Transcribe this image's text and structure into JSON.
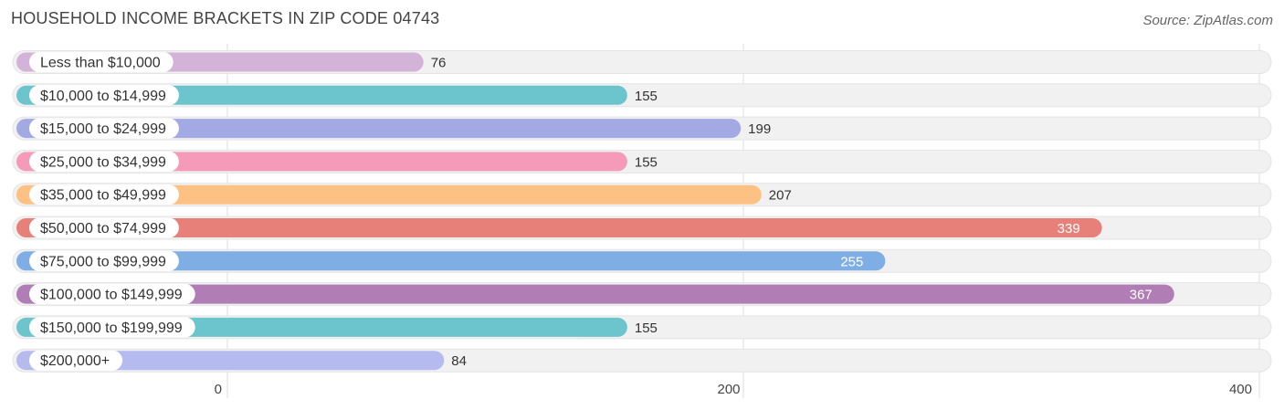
{
  "header": {
    "title": "HOUSEHOLD INCOME BRACKETS IN ZIP CODE 04743",
    "source": "Source: ZipAtlas.com"
  },
  "chart_data": {
    "type": "bar",
    "orientation": "horizontal",
    "title": "HOUSEHOLD INCOME BRACKETS IN ZIP CODE 04743",
    "categories": [
      "Less than $10,000",
      "$10,000 to $14,999",
      "$15,000 to $24,999",
      "$25,000 to $34,999",
      "$35,000 to $49,999",
      "$50,000 to $74,999",
      "$75,000 to $99,999",
      "$100,000 to $149,999",
      "$150,000 to $199,999",
      "$200,000+"
    ],
    "values": [
      76,
      155,
      199,
      155,
      207,
      339,
      255,
      367,
      155,
      84
    ],
    "colors": [
      "#d4b3d9",
      "#6cc5cc",
      "#a3a9e3",
      "#f59ab8",
      "#fcc183",
      "#e8807a",
      "#7eaee3",
      "#b07db5",
      "#6cc5cc",
      "#b6bbef"
    ],
    "value_label_inside": [
      false,
      false,
      false,
      false,
      false,
      true,
      true,
      true,
      false,
      false
    ],
    "xticks": [
      0,
      200,
      400
    ],
    "xlim": [
      0,
      400
    ],
    "grid": true,
    "track_color": "#f1f1f1"
  }
}
